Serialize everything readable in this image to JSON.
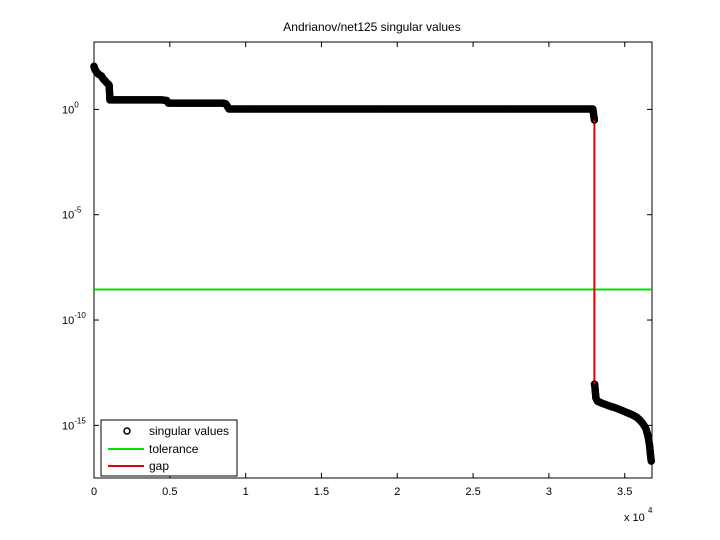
{
  "chart_data": {
    "type": "scatter",
    "title": "Andrianov/net125 singular values",
    "xlabel": "",
    "ylabel": "",
    "x_scale_label": "x 10",
    "x_scale_exponent": "4",
    "xlim": [
      0,
      3.68
    ],
    "x_ticks": [
      0,
      0.5,
      1,
      1.5,
      2,
      2.5,
      3,
      3.5
    ],
    "x_tick_labels": [
      "0",
      "0.5",
      "1",
      "1.5",
      "2",
      "2.5",
      "3",
      "3.5"
    ],
    "y_scale": "log",
    "ylim_log10": [
      -17.5,
      3.2
    ],
    "y_ticks_log10": [
      0,
      -5,
      -10,
      -15
    ],
    "y_tick_base": "10",
    "y_tick_exponents": [
      "0",
      "-5",
      "-10",
      "-15"
    ],
    "grid": false,
    "legend_position": "bottom-left",
    "series": [
      {
        "name": "singular values",
        "marker": "circle",
        "color": "#000000",
        "points_log10": [
          [
            0.0,
            2.05
          ],
          [
            0.003,
            1.95
          ],
          [
            0.006,
            1.9
          ],
          [
            0.01,
            1.85
          ],
          [
            0.015,
            1.8
          ],
          [
            0.02,
            1.75
          ],
          [
            0.025,
            1.7
          ],
          [
            0.03,
            1.67
          ],
          [
            0.04,
            1.63
          ],
          [
            0.05,
            1.58
          ],
          [
            0.06,
            1.45
          ],
          [
            0.07,
            1.38
          ],
          [
            0.08,
            1.3
          ],
          [
            0.09,
            1.22
          ],
          [
            0.1,
            1.15
          ],
          [
            0.105,
            0.45
          ],
          [
            0.15,
            0.45
          ],
          [
            0.2,
            0.45
          ],
          [
            0.25,
            0.45
          ],
          [
            0.3,
            0.45
          ],
          [
            0.35,
            0.45
          ],
          [
            0.4,
            0.45
          ],
          [
            0.45,
            0.45
          ],
          [
            0.48,
            0.42
          ],
          [
            0.49,
            0.3
          ],
          [
            0.55,
            0.3
          ],
          [
            0.6,
            0.3
          ],
          [
            0.65,
            0.3
          ],
          [
            0.7,
            0.3
          ],
          [
            0.75,
            0.3
          ],
          [
            0.8,
            0.3
          ],
          [
            0.85,
            0.3
          ],
          [
            0.87,
            0.26
          ],
          [
            0.89,
            0.02
          ],
          [
            1.0,
            0.02
          ],
          [
            1.2,
            0.02
          ],
          [
            1.4,
            0.02
          ],
          [
            1.6,
            0.02
          ],
          [
            1.8,
            0.02
          ],
          [
            2.0,
            0.02
          ],
          [
            2.2,
            0.02
          ],
          [
            2.4,
            0.02
          ],
          [
            2.6,
            0.02
          ],
          [
            2.8,
            0.02
          ],
          [
            3.0,
            0.02
          ],
          [
            3.2,
            0.02
          ],
          [
            3.29,
            0.02
          ],
          [
            3.3,
            -0.5
          ],
          [
            3.302,
            -13.05
          ],
          [
            3.31,
            -13.7
          ],
          [
            3.32,
            -13.85
          ],
          [
            3.35,
            -13.95
          ],
          [
            3.4,
            -14.08
          ],
          [
            3.45,
            -14.2
          ],
          [
            3.5,
            -14.35
          ],
          [
            3.55,
            -14.5
          ],
          [
            3.58,
            -14.62
          ],
          [
            3.6,
            -14.75
          ],
          [
            3.62,
            -14.92
          ],
          [
            3.64,
            -15.15
          ],
          [
            3.655,
            -15.55
          ],
          [
            3.665,
            -16.0
          ],
          [
            3.67,
            -16.4
          ],
          [
            3.675,
            -16.7
          ]
        ]
      },
      {
        "name": "tolerance",
        "color": "#00e000",
        "y_log10": -8.55
      },
      {
        "name": "gap",
        "color": "#e00000",
        "x": 3.3,
        "y_log10_range": [
          -0.5,
          -13.05
        ]
      }
    ]
  }
}
